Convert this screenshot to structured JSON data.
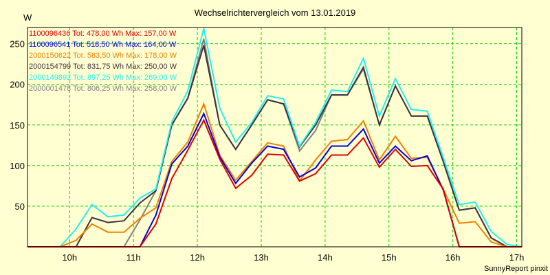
{
  "chart_data": {
    "type": "line",
    "title": "Wechselrichtervergleich vom 13.01.2019",
    "ylabel": "W",
    "xlabel": "",
    "footer": "SunnyReport pinxit",
    "ylim": [
      0,
      270
    ],
    "xlim_hours": [
      9.34,
      17.08
    ],
    "grid": true,
    "yticks": [
      50,
      100,
      150,
      200,
      250
    ],
    "ytick_labels": [
      "50",
      "100",
      "150",
      "200",
      "250"
    ],
    "xticks": [
      10,
      11,
      12,
      13,
      14,
      15,
      16,
      17
    ],
    "xtick_labels": [
      "10h",
      "11h",
      "12h",
      "13h",
      "14h",
      "15h",
      "16h",
      "17h"
    ],
    "legend_position": "top-left",
    "x": [
      9.35,
      9.6,
      9.85,
      10.1,
      10.35,
      10.6,
      10.85,
      11.1,
      11.35,
      11.6,
      11.85,
      12.1,
      12.35,
      12.6,
      12.85,
      13.1,
      13.35,
      13.6,
      13.85,
      14.1,
      14.35,
      14.6,
      14.85,
      15.1,
      15.35,
      15.6,
      15.85,
      16.1,
      16.35,
      16.6,
      16.85,
      17.08
    ],
    "series": [
      {
        "name": "1100096436",
        "legend": "1100096436 Tot: 478,00 Wh Max: 157,00 W",
        "color": "#e00000",
        "values": [
          0,
          0,
          0,
          0,
          0,
          0,
          0,
          0,
          28,
          84,
          119,
          156,
          108,
          72,
          88,
          114,
          113,
          81,
          90,
          113,
          113,
          134,
          98,
          120,
          99,
          100,
          71,
          0,
          0,
          0,
          0,
          0
        ]
      },
      {
        "name": "1100096541",
        "legend": "1100096541 Tot: 518,50 Wh Max: 164,00 W",
        "color": "#0000e0",
        "values": [
          0,
          0,
          0,
          0,
          0,
          0,
          0,
          0,
          39,
          102,
          124,
          164,
          111,
          78,
          103,
          124,
          120,
          86,
          97,
          124,
          124,
          145,
          103,
          124,
          106,
          112,
          70,
          0,
          0,
          0,
          0,
          0
        ]
      },
      {
        "name": "2000150622",
        "legend": "2000150622 Tot: 583,50 Wh Max: 178,00 W",
        "color": "#f08000",
        "values": [
          0,
          0,
          0,
          8,
          28,
          18,
          18,
          35,
          48,
          105,
          129,
          176,
          113,
          82,
          105,
          128,
          124,
          81,
          107,
          130,
          132,
          155,
          107,
          136,
          109,
          110,
          71,
          29,
          31,
          6,
          0,
          0
        ]
      },
      {
        "name": "2000154799",
        "legend": "2000154799 Tot: 831,75 Wh Max: 250,00 W",
        "color": "#403040",
        "values": [
          0,
          0,
          0,
          0,
          36,
          30,
          32,
          54,
          69,
          150,
          183,
          248,
          150,
          120,
          150,
          181,
          176,
          123,
          150,
          187,
          187,
          221,
          150,
          198,
          161,
          161,
          105,
          45,
          48,
          11,
          0,
          0
        ]
      },
      {
        "name": "2000149892",
        "legend": "2000149892 Tot: 897,25 Wh Max: 269,00 W",
        "color": "#20f0f0",
        "values": [
          null,
          0,
          0,
          22,
          52,
          37,
          39,
          60,
          71,
          154,
          192,
          269,
          171,
          129,
          153,
          186,
          182,
          124,
          153,
          193,
          191,
          232,
          161,
          207,
          169,
          167,
          110,
          52,
          55,
          19,
          3,
          0
        ]
      },
      {
        "name": "2000001478",
        "legend": "2000001478 Tot: 806,25 Wh Max: 258,00 W",
        "color": "#808080",
        "values": [
          0,
          0,
          0,
          0,
          0,
          0,
          0,
          33,
          69,
          150,
          183,
          256,
          150,
          120,
          150,
          181,
          176,
          118,
          143,
          187,
          187,
          219,
          150,
          198,
          161,
          161,
          105,
          45,
          48,
          11,
          0,
          0
        ]
      }
    ]
  },
  "colors": {
    "background": "#ffffd2",
    "grid": "#00d000",
    "axis": "#000000"
  }
}
